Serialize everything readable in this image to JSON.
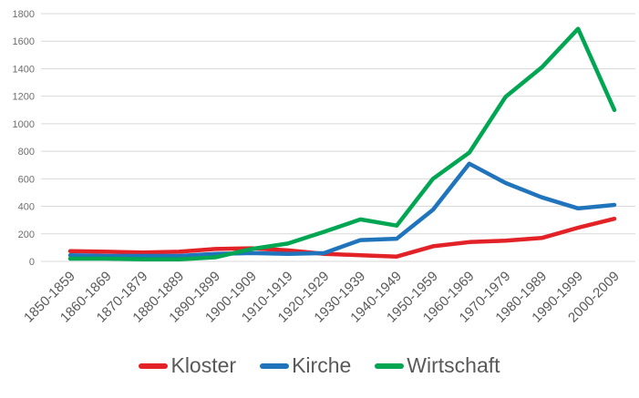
{
  "chart": {
    "background": "#ffffff",
    "grid_color": "#d9d9d9",
    "ytick_color": "#6e6e6e",
    "xlabel_color": "#595959",
    "legend_text_color": "#595959"
  },
  "chart_data": {
    "type": "line",
    "title": "",
    "xlabel": "",
    "ylabel": "",
    "categories": [
      "1850-1859",
      "1860-1869",
      "1870-1879",
      "1880-1889",
      "1890-1899",
      "1900-1909",
      "1910-1919",
      "1920-1929",
      "1930-1939",
      "1940-1949",
      "1950-1959",
      "1960-1969",
      "1970-1979",
      "1980-1989",
      "1990-1999",
      "2000-2009"
    ],
    "series": [
      {
        "name": "Kloster",
        "color": "#e32227",
        "values": [
          75,
          70,
          65,
          70,
          90,
          95,
          80,
          55,
          45,
          35,
          110,
          140,
          150,
          170,
          245,
          310
        ]
      },
      {
        "name": "Kirche",
        "color": "#1f74bc",
        "values": [
          45,
          40,
          40,
          40,
          55,
          60,
          55,
          60,
          155,
          165,
          375,
          710,
          570,
          465,
          385,
          410
        ]
      },
      {
        "name": "Wirtschaft",
        "color": "#00a651",
        "values": [
          20,
          20,
          15,
          15,
          30,
          90,
          130,
          215,
          305,
          260,
          600,
          790,
          1195,
          1410,
          1690,
          1100
        ]
      }
    ],
    "ylim": [
      0,
      1800
    ],
    "ytick_step": 200,
    "yticks": [
      "0",
      "200",
      "400",
      "600",
      "800",
      "1000",
      "1200",
      "1400",
      "1600",
      "1800"
    ],
    "grid": true,
    "legend_position": "bottom"
  }
}
